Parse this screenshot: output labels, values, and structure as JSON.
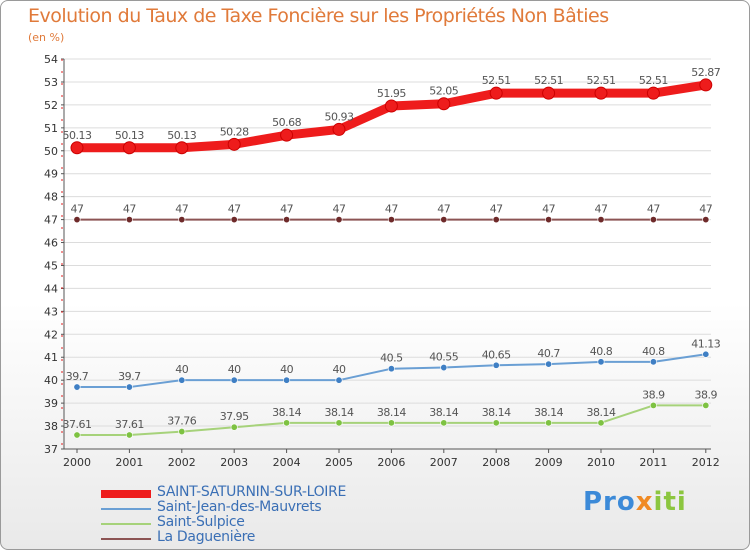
{
  "title": "Evolution du Taux de Taxe Foncière sur les Propriétés Non Bâties",
  "subtitle": "(en %)",
  "logo": {
    "part1": "Pro",
    "part2": "x",
    "part3": "iti"
  },
  "chart_data": {
    "type": "line",
    "title": "Evolution du Taux de Taxe Foncière sur les Propriétés Non Bâties",
    "ylabel": "(en %)",
    "xlabel": "",
    "ylim": [
      37,
      54
    ],
    "yticks": [
      37,
      38,
      39,
      40,
      41,
      42,
      43,
      44,
      45,
      46,
      47,
      48,
      49,
      50,
      51,
      52,
      53,
      54
    ],
    "categories": [
      "2000",
      "2001",
      "2002",
      "2003",
      "2004",
      "2005",
      "2006",
      "2007",
      "2008",
      "2009",
      "2010",
      "2011",
      "2012"
    ],
    "legend_position": "bottom-left",
    "series": [
      {
        "name": "SAINT-SATURNIN-SUR-LOIRE",
        "color": "#ee1c1c",
        "marker": "#ee1c1c",
        "labels": [
          "50.13",
          "50.13",
          "50.13",
          "50.28",
          "50.68",
          "50.93",
          "51.95",
          "52.05",
          "52.51",
          "52.51",
          "52.51",
          "52.51",
          "52.87"
        ],
        "values": [
          50.13,
          50.13,
          50.13,
          50.28,
          50.68,
          50.93,
          51.95,
          52.05,
          52.51,
          52.51,
          52.51,
          52.51,
          52.87
        ]
      },
      {
        "name": "Saint-Jean-des-Mauvrets",
        "color": "#6a9fd4",
        "marker": "#3f7fc4",
        "labels": [
          "39.7",
          "39.7",
          "40",
          "40",
          "40",
          "40",
          "40.5",
          "40.55",
          "40.65",
          "40.7",
          "40.8",
          "40.8",
          "41.13"
        ],
        "values": [
          39.7,
          39.7,
          40,
          40,
          40,
          40,
          40.5,
          40.55,
          40.65,
          40.7,
          40.8,
          40.8,
          41.13
        ]
      },
      {
        "name": "Saint-Sulpice",
        "color": "#a6d27a",
        "marker": "#7ec242",
        "labels": [
          "37.61",
          "37.61",
          "37.76",
          "37.95",
          "38.14",
          "38.14",
          "38.14",
          "38.14",
          "38.14",
          "38.14",
          "38.14",
          "38.9",
          "38.9"
        ],
        "values": [
          37.61,
          37.61,
          37.76,
          37.95,
          38.14,
          38.14,
          38.14,
          38.14,
          38.14,
          38.14,
          38.14,
          38.9,
          38.9
        ]
      },
      {
        "name": "La Daguenière",
        "color": "#8c5454",
        "marker": "#6e2a2a",
        "labels": [
          "47",
          "47",
          "47",
          "47",
          "47",
          "47",
          "47",
          "47",
          "47",
          "47",
          "47",
          "47",
          "47"
        ],
        "values": [
          47,
          47,
          47,
          47,
          47,
          47,
          47,
          47,
          47,
          47,
          47,
          47,
          47
        ]
      }
    ]
  }
}
